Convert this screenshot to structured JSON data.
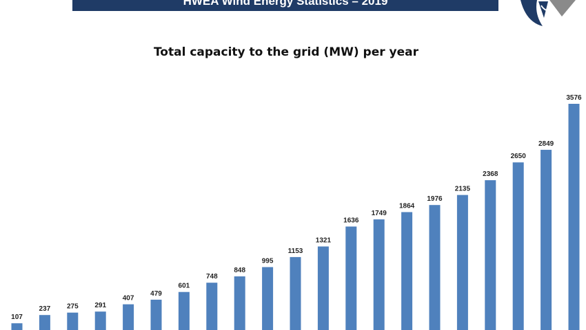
{
  "header": {
    "title": "HWEA Wind Energy Statistics – 2019"
  },
  "logo": {
    "icon": "hwea-logo-icon",
    "colors": [
      "#1f3b66",
      "#8a8a8a"
    ]
  },
  "chart_data": {
    "type": "bar",
    "title": "Total capacity to the grid (MW) per year",
    "xlabel": "",
    "ylabel": "",
    "values": [
      107,
      237,
      275,
      291,
      407,
      479,
      601,
      748,
      848,
      995,
      1153,
      1321,
      1636,
      1749,
      1864,
      1976,
      2135,
      2368,
      2650,
      2849,
      3576
    ],
    "ylim": [
      0,
      3800
    ],
    "grid": false,
    "bar_color": "#4f81bd",
    "data_labels": true
  }
}
